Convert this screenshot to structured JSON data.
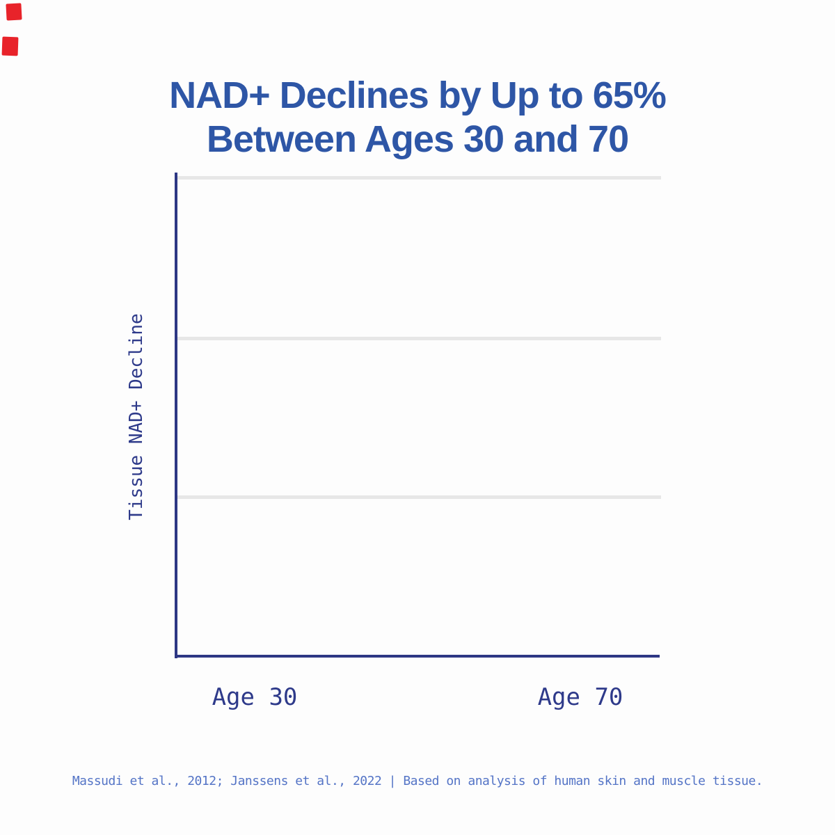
{
  "page": {
    "background_color": "#fdfdfd"
  },
  "title": {
    "line1": "NAD+ Declines by Up to 65%",
    "line2": "Between Ages 30 and 70",
    "color": "#2e56a6"
  },
  "chart": {
    "ylabel": "Tissue NAD+ Decline",
    "x_tick_labels": [
      "Age 30",
      "Age 70"
    ],
    "axis_color": "#2d3784",
    "tick_label_color": "#2e3a8a",
    "gridline_color": "#e7e7e7",
    "gridline_count": 3
  },
  "footer": {
    "text": "Massudi et al., 2012; Janssens et al., 2022 | Based on analysis of human skin and muscle tissue.",
    "color": "#5474c6"
  },
  "artifacts": {
    "red_mark_color": "#e8232a",
    "red_mark_count": 2
  },
  "chart_data": {
    "type": "bar",
    "title": "NAD+ Declines by Up to 65% Between Ages 30 and 70",
    "categories": [
      "Age 30",
      "Age 70"
    ],
    "values": [],
    "series_visible": false,
    "note": "Empty animation frame: axes, 3 horizontal gridlines and category labels are drawn but no bars are rendered yet",
    "xlabel": "",
    "ylabel": "Tissue NAD+ Decline",
    "grid": "horizontal",
    "legend": "none"
  }
}
